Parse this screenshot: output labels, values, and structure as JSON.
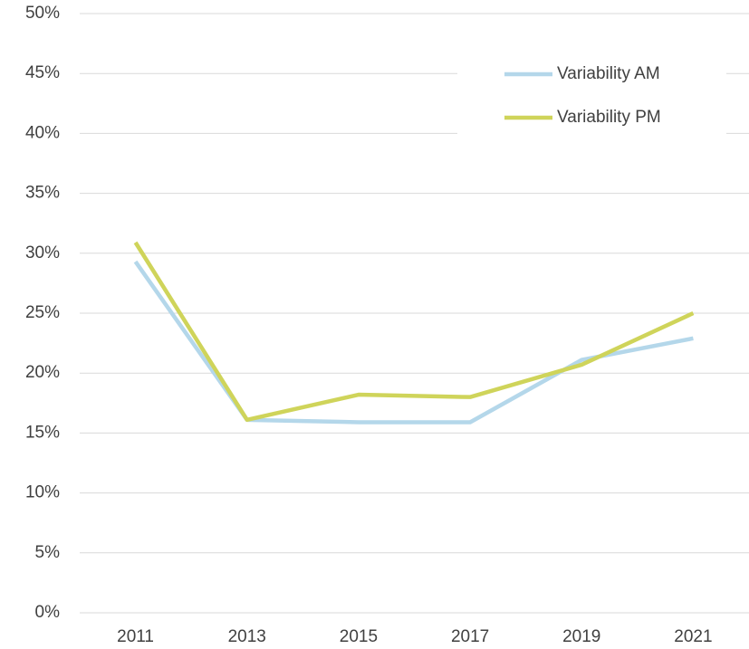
{
  "chart_data": {
    "type": "line",
    "categories": [
      "2011",
      "2013",
      "2015",
      "2017",
      "2019",
      "2021"
    ],
    "series": [
      {
        "name": "Variability AM",
        "color": "#b4d7ea",
        "values": [
          29.3,
          16.1,
          15.9,
          15.9,
          21.1,
          22.9
        ]
      },
      {
        "name": "Variability PM",
        "color": "#cfd45a",
        "values": [
          30.9,
          16.1,
          18.2,
          18.0,
          20.7,
          25.0
        ]
      }
    ],
    "ylim": [
      0,
      50
    ],
    "yticks": [
      {
        "value": 0,
        "label": "0%"
      },
      {
        "value": 5,
        "label": "5%"
      },
      {
        "value": 10,
        "label": "10%"
      },
      {
        "value": 15,
        "label": "15%"
      },
      {
        "value": 20,
        "label": "20%"
      },
      {
        "value": 25,
        "label": "25%"
      },
      {
        "value": 30,
        "label": "30%"
      },
      {
        "value": 35,
        "label": "35%"
      },
      {
        "value": 40,
        "label": "40%"
      },
      {
        "value": 45,
        "label": "45%"
      },
      {
        "value": 50,
        "label": "50%"
      }
    ],
    "grid": true,
    "legend": "top-right"
  }
}
